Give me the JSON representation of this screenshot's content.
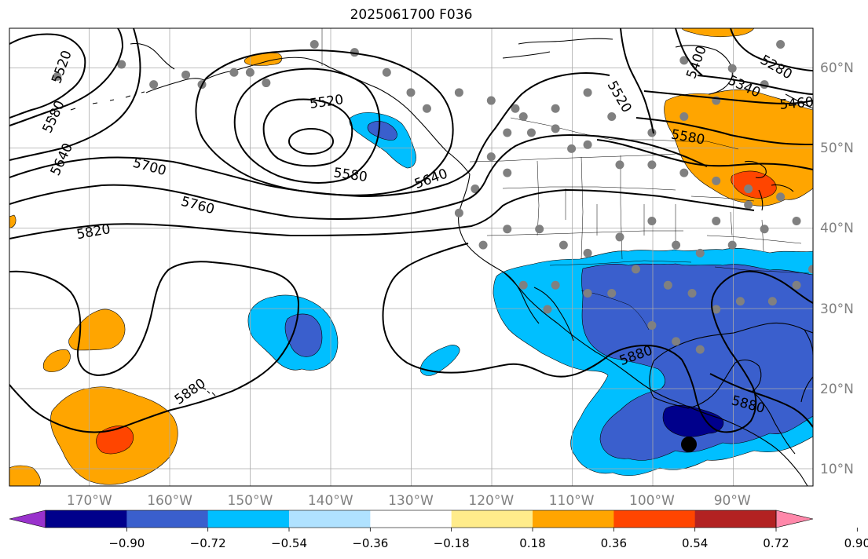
{
  "title": "2025061700 F036",
  "chart_data": {
    "type": "heatmap",
    "title": "2025061700 F036",
    "map_extent": {
      "lon_min": -180,
      "lon_max": -80,
      "lat_min": 8,
      "lat_max": 65
    },
    "lon_ticks": [
      {
        "value": -170,
        "label": "170°W"
      },
      {
        "value": -160,
        "label": "160°W"
      },
      {
        "value": -150,
        "label": "150°W"
      },
      {
        "value": -140,
        "label": "140°W"
      },
      {
        "value": -130,
        "label": "130°W"
      },
      {
        "value": -120,
        "label": "120°W"
      },
      {
        "value": -110,
        "label": "110°W"
      },
      {
        "value": -100,
        "label": "100°W"
      },
      {
        "value": -90,
        "label": "90°W"
      }
    ],
    "lat_ticks": [
      {
        "value": 60,
        "label": "60°N"
      },
      {
        "value": 50,
        "label": "50°N"
      },
      {
        "value": 40,
        "label": "40°N"
      },
      {
        "value": 30,
        "label": "30°N"
      },
      {
        "value": 20,
        "label": "20°N"
      },
      {
        "value": 10,
        "label": "10°N"
      }
    ],
    "grid": true,
    "contour_labels": [
      {
        "text": "5520",
        "lon": -173.5,
        "lat": 60.2
      },
      {
        "text": "5580",
        "lon": -174.5,
        "lat": 54.0
      },
      {
        "text": "5640",
        "lon": -173.5,
        "lat": 48.7
      },
      {
        "text": "5520",
        "lon": -140.5,
        "lat": 55.9
      },
      {
        "text": "5700",
        "lon": -162.5,
        "lat": 47.8
      },
      {
        "text": "5760",
        "lon": -156.5,
        "lat": 43.0
      },
      {
        "text": "5820",
        "lon": -169.5,
        "lat": 39.7
      },
      {
        "text": "5580",
        "lon": -137.5,
        "lat": 46.8
      },
      {
        "text": "5640",
        "lon": -127.5,
        "lat": 46.3
      },
      {
        "text": "5520",
        "lon": -104.0,
        "lat": 56.5
      },
      {
        "text": "5400",
        "lon": -94.5,
        "lat": 60.8
      },
      {
        "text": "5280",
        "lon": -84.5,
        "lat": 60.2
      },
      {
        "text": "5340",
        "lon": -88.5,
        "lat": 57.8
      },
      {
        "text": "5460",
        "lon": -82.0,
        "lat": 55.7
      },
      {
        "text": "5580",
        "lon": -95.5,
        "lat": 51.5
      },
      {
        "text": "5880",
        "lon": -102.0,
        "lat": 24.3
      },
      {
        "text": "5880",
        "lon": -157.5,
        "lat": 19.8
      },
      {
        "text": "5880",
        "lon": -88.0,
        "lat": 18.2
      }
    ],
    "colorbar": {
      "ticks": [
        -0.9,
        -0.72,
        -0.54,
        -0.36,
        -0.18,
        0.18,
        0.36,
        0.54,
        0.72,
        0.9
      ],
      "tick_labels": [
        "−0.90",
        "−0.72",
        "−0.54",
        "−0.36",
        "−0.18",
        "0.18",
        "0.36",
        "0.54",
        "0.72",
        "0.90"
      ],
      "colors": [
        "#9932cc",
        "#00008b",
        "#3a5fcd",
        "#00bfff",
        "#b0e2ff",
        "#ffffff",
        "#ffec8b",
        "#ffa500",
        "#ff4500",
        "#b22222",
        "#ff88aa"
      ],
      "extend": "both"
    },
    "station_points": [
      [
        -174,
        59
      ],
      [
        -166,
        60.5
      ],
      [
        -162,
        58
      ],
      [
        -158,
        59.2
      ],
      [
        -156,
        58
      ],
      [
        -152,
        59.5
      ],
      [
        -150,
        59.5
      ],
      [
        -148,
        58.2
      ],
      [
        -142,
        63
      ],
      [
        -137,
        62
      ],
      [
        -133,
        59.5
      ],
      [
        -130,
        57
      ],
      [
        -128,
        55
      ],
      [
        -124,
        57
      ],
      [
        -120,
        56
      ],
      [
        -117,
        55
      ],
      [
        -115,
        52
      ],
      [
        -112,
        52.5
      ],
      [
        -110,
        50
      ],
      [
        -108,
        50.5
      ],
      [
        -104,
        48
      ],
      [
        -100,
        48
      ],
      [
        -96,
        47
      ],
      [
        -92,
        46
      ],
      [
        -88,
        43
      ],
      [
        -84,
        44
      ],
      [
        -120,
        49
      ],
      [
        -118,
        47
      ],
      [
        -122,
        45
      ],
      [
        -124,
        42
      ],
      [
        -121,
        38
      ],
      [
        -118,
        40
      ],
      [
        -114,
        40
      ],
      [
        -111,
        38
      ],
      [
        -108,
        37
      ],
      [
        -104,
        39
      ],
      [
        -100,
        41
      ],
      [
        -97,
        38
      ],
      [
        -94,
        37
      ],
      [
        -90,
        38
      ],
      [
        -86,
        40
      ],
      [
        -82,
        41
      ],
      [
        -98,
        33
      ],
      [
        -95,
        32
      ],
      [
        -92,
        30
      ],
      [
        -89,
        31
      ],
      [
        -85,
        31
      ],
      [
        -82,
        33
      ],
      [
        -80,
        35
      ],
      [
        -100,
        28
      ],
      [
        -97,
        26
      ],
      [
        -94,
        25
      ],
      [
        -112,
        33
      ],
      [
        -116,
        33
      ],
      [
        -105,
        32
      ],
      [
        -102,
        35
      ],
      [
        -108,
        32
      ],
      [
        -113,
        30
      ],
      [
        -92,
        41
      ],
      [
        -88,
        45
      ],
      [
        -105,
        54
      ],
      [
        -100,
        52
      ],
      [
        -96,
        54
      ],
      [
        -92,
        56
      ],
      [
        -86,
        58
      ],
      [
        -96,
        61
      ],
      [
        -90,
        60
      ],
      [
        -84,
        63
      ],
      [
        -108,
        57
      ],
      [
        -112,
        55
      ],
      [
        -116,
        54
      ],
      [
        -118,
        52
      ]
    ]
  }
}
